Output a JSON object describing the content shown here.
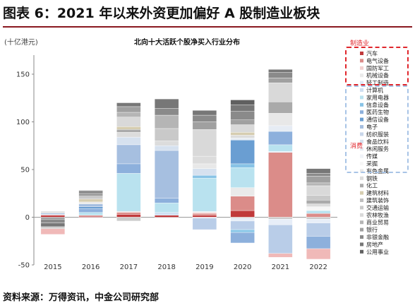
{
  "header": {
    "title": "图表 6：2021 年以来外资更加偏好 A 股制造业板块"
  },
  "footer": {
    "source": "资料来源：万得资讯，中金公司研究部"
  },
  "colors": {
    "title_rule": "#8a1820",
    "manufacturing_box": "#e0262c",
    "tmt_box": "#a8c4e6",
    "group_label": "#e0262c"
  },
  "chart_data": {
    "type": "bar",
    "stacked": true,
    "title": "北向十大活跃个股净买入行业分布",
    "ylabel": "(十亿港元)",
    "xlabel": "",
    "categories": [
      "2015",
      "2016",
      "2017",
      "2018",
      "2019",
      "2020",
      "2021",
      "2022"
    ],
    "ylim": [
      -50,
      170
    ],
    "yticks": [
      -50,
      0,
      50,
      100,
      150
    ],
    "grid": false,
    "legend_position": "right",
    "legend_groups": [
      {
        "label": "制造业",
        "start": 0,
        "end": 3
      },
      {
        "label": "消费",
        "start": 14,
        "end": 14
      }
    ],
    "series": [
      {
        "name": "汽车",
        "color": "#c0393b",
        "values": [
          2,
          1,
          3,
          2,
          2,
          7,
          0,
          0
        ]
      },
      {
        "name": "电气设备",
        "color": "#db8c89",
        "values": [
          0,
          1,
          2,
          0,
          2,
          15,
          68,
          4
        ]
      },
      {
        "name": "国防军工",
        "color": "#f3d0cf",
        "values": [
          1,
          0,
          1,
          0,
          1,
          0,
          0,
          0
        ]
      },
      {
        "name": "机械设备",
        "color": "#eaeaea",
        "values": [
          0,
          0,
          0,
          0,
          1,
          9,
          0,
          0
        ]
      },
      {
        "name": "轻工制造",
        "color": "#dfe9f6",
        "values": [
          0,
          0,
          0,
          0,
          0,
          0,
          1,
          0
        ]
      },
      {
        "name": "计算机",
        "color": "#cfe0f2",
        "values": [
          0,
          0,
          0,
          3,
          0,
          0,
          0,
          0
        ]
      },
      {
        "name": "家用电器",
        "color": "#b9e2ef",
        "values": [
          0,
          3,
          40,
          10,
          35,
          21,
          7,
          3
        ]
      },
      {
        "name": "信息设备",
        "color": "#88c3e6",
        "values": [
          0,
          0,
          0,
          0,
          3,
          4,
          0,
          0
        ]
      },
      {
        "name": "医药生物",
        "color": "#8db0dc",
        "values": [
          0,
          4,
          10,
          5,
          0,
          0,
          14,
          0
        ]
      },
      {
        "name": "通信设备",
        "color": "#6a9ed2",
        "values": [
          1,
          2,
          0,
          0,
          0,
          25,
          0,
          0
        ]
      },
      {
        "name": "电子",
        "color": "#a6bfe0",
        "values": [
          0,
          3,
          20,
          50,
          0,
          0,
          0,
          0
        ]
      },
      {
        "name": "纺织服装",
        "color": "#c8d6ea",
        "values": [
          0,
          0,
          0,
          0,
          0,
          0,
          0,
          0
        ]
      },
      {
        "name": "食品饮料",
        "color": "#d6e1ef",
        "values": [
          0,
          0,
          8,
          5,
          7,
          0,
          0,
          0
        ]
      },
      {
        "name": "休闲服务",
        "color": "#e6ecf4",
        "values": [
          0,
          0,
          0,
          0,
          0,
          2,
          6,
          0
        ]
      },
      {
        "name": "传媒",
        "color": "#f0f3f8",
        "values": [
          0,
          0,
          0,
          0,
          0,
          0,
          0,
          0
        ]
      },
      {
        "name": "采掘",
        "color": "#f6f6f6",
        "values": [
          0,
          0,
          0,
          0,
          0,
          0,
          0,
          4
        ]
      },
      {
        "name": "有色金属",
        "color": "#e8e8e8",
        "values": [
          1,
          2,
          0,
          0,
          5,
          0,
          13,
          0
        ]
      },
      {
        "name": "钢铁",
        "color": "#dcdcdc",
        "values": [
          0,
          0,
          5,
          5,
          8,
          3,
          0,
          3
        ]
      },
      {
        "name": "化工",
        "color": "#aaaaaa",
        "values": [
          0,
          0,
          3,
          0,
          0,
          0,
          12,
          4
        ]
      },
      {
        "name": "建筑材料",
        "color": "#d6cdb0",
        "values": [
          0,
          3,
          3,
          0,
          0,
          3,
          0,
          0
        ]
      },
      {
        "name": "建筑装饰",
        "color": "#bfbfbf",
        "values": [
          0,
          0,
          0,
          0,
          0,
          0,
          0,
          0
        ]
      },
      {
        "name": "交通运输",
        "color": "#c9c9c9",
        "values": [
          1,
          3,
          0,
          13,
          0,
          0,
          0,
          5
        ]
      },
      {
        "name": "农林牧渔",
        "color": "#d9d9d9",
        "values": [
          0,
          0,
          10,
          0,
          28,
          8,
          20,
          10
        ]
      },
      {
        "name": "商业贸易",
        "color": "#b5b5b5",
        "values": [
          0,
          0,
          5,
          14,
          0,
          0,
          0,
          3
        ]
      },
      {
        "name": "银行",
        "color": "#a0a0a0",
        "values": [
          -2,
          3,
          6,
          0,
          8,
          5,
          5,
          7
        ]
      },
      {
        "name": "非银金融",
        "color": "#8a8a8a",
        "values": [
          -4,
          0,
          0,
          7,
          7,
          9,
          6,
          3
        ]
      },
      {
        "name": "房地产",
        "color": "#777777",
        "values": [
          -4,
          2,
          4,
          10,
          5,
          7,
          3,
          5
        ]
      },
      {
        "name": "公用事业",
        "color": "#606060",
        "values": [
          0,
          1,
          0,
          0,
          0,
          5,
          0,
          0
        ]
      },
      {
        "name": "汽车",
        "color": "#c0393b",
        "values": [
          0,
          0,
          0,
          0,
          0,
          0,
          0,
          0
        ]
      },
      {
        "name": "非银金融",
        "color": "#cccccc",
        "values": [
          -2,
          0,
          -4,
          0,
          0,
          -1,
          -2,
          -2
        ]
      },
      {
        "name": "传媒",
        "color": "#e7eef8",
        "values": [
          0,
          0,
          0,
          0,
          -1,
          -3,
          -6,
          -4
        ]
      },
      {
        "name": "电子",
        "color": "#b9cde8",
        "values": [
          0,
          0,
          0,
          0,
          -12,
          -9,
          -30,
          -14
        ]
      },
      {
        "name": "信息设备",
        "color": "#8cc8e8",
        "values": [
          0,
          0,
          0,
          0,
          0,
          -3,
          0,
          0
        ]
      },
      {
        "name": "医药生物",
        "color": "#8db0dc",
        "values": [
          0,
          0,
          0,
          0,
          0,
          -11,
          0,
          -13
        ]
      },
      {
        "name": "电气设备",
        "color": "#f0b9b8",
        "values": [
          -6,
          0,
          0,
          0,
          0,
          0,
          -4,
          -11
        ]
      }
    ]
  }
}
